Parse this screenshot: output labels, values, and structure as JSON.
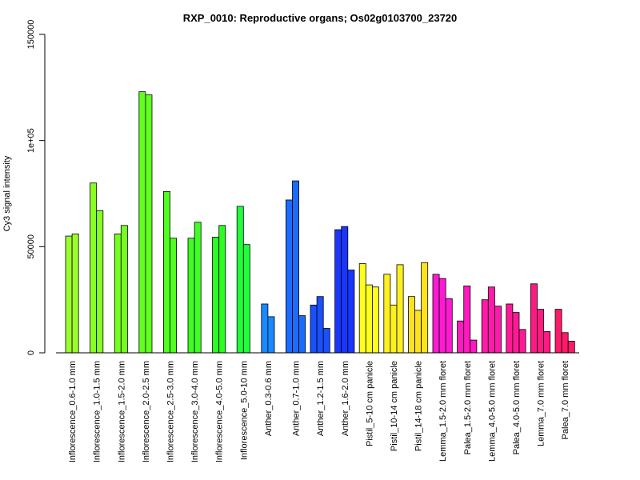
{
  "chart_data": {
    "type": "bar",
    "title": "RXP_0010: Reproductive organs; Os02g0103700_23720",
    "xlabel": "",
    "ylabel": "Cy3 signal intensity",
    "ylim": [
      0,
      150000
    ],
    "yticks": [
      {
        "value": 0,
        "label": "0"
      },
      {
        "value": 50000,
        "label": "50000"
      },
      {
        "value": 100000,
        "label": "1e+05"
      },
      {
        "value": 150000,
        "label": "150000"
      }
    ],
    "grid": false,
    "groups": [
      {
        "label": "Inflorescence_0.6-1.0 mm",
        "values": [
          55000,
          56000
        ],
        "color": "#9afe2c"
      },
      {
        "label": "Inflorescence_1.0-1.5 mm",
        "values": [
          80000,
          67000
        ],
        "color": "#88fe24"
      },
      {
        "label": "Inflorescence_1.5-2.0 mm",
        "values": [
          56000,
          60000
        ],
        "color": "#76fe22"
      },
      {
        "label": "Inflorescence_2.0-2.5 mm",
        "values": [
          123000,
          121500
        ],
        "color": "#62fe22"
      },
      {
        "label": "Inflorescence_2.5-3.0 mm",
        "values": [
          76000,
          54000
        ],
        "color": "#50fe22"
      },
      {
        "label": "Inflorescence_3.0-4.0 mm",
        "values": [
          54000,
          61500
        ],
        "color": "#3efe22"
      },
      {
        "label": "Inflorescence_4.0-5.0 mm",
        "values": [
          54500,
          60000
        ],
        "color": "#2cfe22"
      },
      {
        "label": "Inflorescence_5.0-10 mm",
        "values": [
          69000,
          51000
        ],
        "color": "#22fe3a"
      },
      {
        "label": "Anther_0.3-0.6 mm",
        "values": [
          23000,
          17000
        ],
        "color": "#1a88fe"
      },
      {
        "label": "Anther_0.7-1.0 mm",
        "values": [
          72000,
          81000,
          17500
        ],
        "color": "#1a6cfe"
      },
      {
        "label": "Anther_1.2-1.5 mm",
        "values": [
          22500,
          26500,
          11500
        ],
        "color": "#1a50fe"
      },
      {
        "label": "Anther_1.6-2.0 mm",
        "values": [
          58000,
          59500,
          39000
        ],
        "color": "#1a36fe"
      },
      {
        "label": "Pistil_5-10 cm panicle",
        "values": [
          42000,
          32000,
          31000
        ],
        "color": "#fefe1e"
      },
      {
        "label": "Pistil_10-14 cm panicle",
        "values": [
          37000,
          22500,
          41500
        ],
        "color": "#fef01e"
      },
      {
        "label": "Pistil_14-18 cm panicle",
        "values": [
          26500,
          20000,
          42500
        ],
        "color": "#fee21e"
      },
      {
        "label": "Lemma_1.5-2.0 mm floret",
        "values": [
          37000,
          35000,
          25500
        ],
        "color": "#fe1ad2"
      },
      {
        "label": "Palea_1.5-2.0 mm floret",
        "values": [
          15000,
          31500,
          6000
        ],
        "color": "#fe1abe"
      },
      {
        "label": "Lemma_4.0-5.0 mm floret",
        "values": [
          25000,
          31000,
          22000
        ],
        "color": "#fe1aaa"
      },
      {
        "label": "Palea_4.0-5.0 mm floret",
        "values": [
          23000,
          19000,
          11000
        ],
        "color": "#fe1a96"
      },
      {
        "label": "Lemma_7.0 mm floret",
        "values": [
          32500,
          20500,
          10000
        ],
        "color": "#fe1a80"
      },
      {
        "label": "Palea_7.0 mm floret",
        "values": [
          20500,
          9500,
          5500
        ],
        "color": "#fe1a6a"
      }
    ]
  }
}
